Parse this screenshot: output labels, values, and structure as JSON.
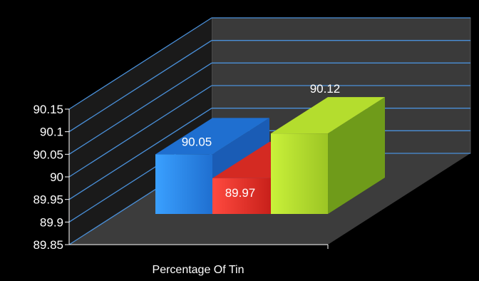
{
  "chart_data": {
    "type": "bar",
    "categories": [
      "Percentage Of Tin"
    ],
    "series": [
      {
        "values": [
          90.05
        ],
        "color": "#2f87e8"
      },
      {
        "values": [
          89.97
        ],
        "color": "#e8302a"
      },
      {
        "values": [
          90.12
        ],
        "color": "#a8d42b"
      }
    ],
    "ylim": [
      89.85,
      90.15
    ],
    "yticks": [
      "89.85",
      "89.9",
      "89.95",
      "90",
      "90.05",
      "90.1",
      "90.15"
    ],
    "data_labels": [
      "90.05",
      "89.97",
      "90.12"
    ],
    "grid": true,
    "three_d": true
  }
}
